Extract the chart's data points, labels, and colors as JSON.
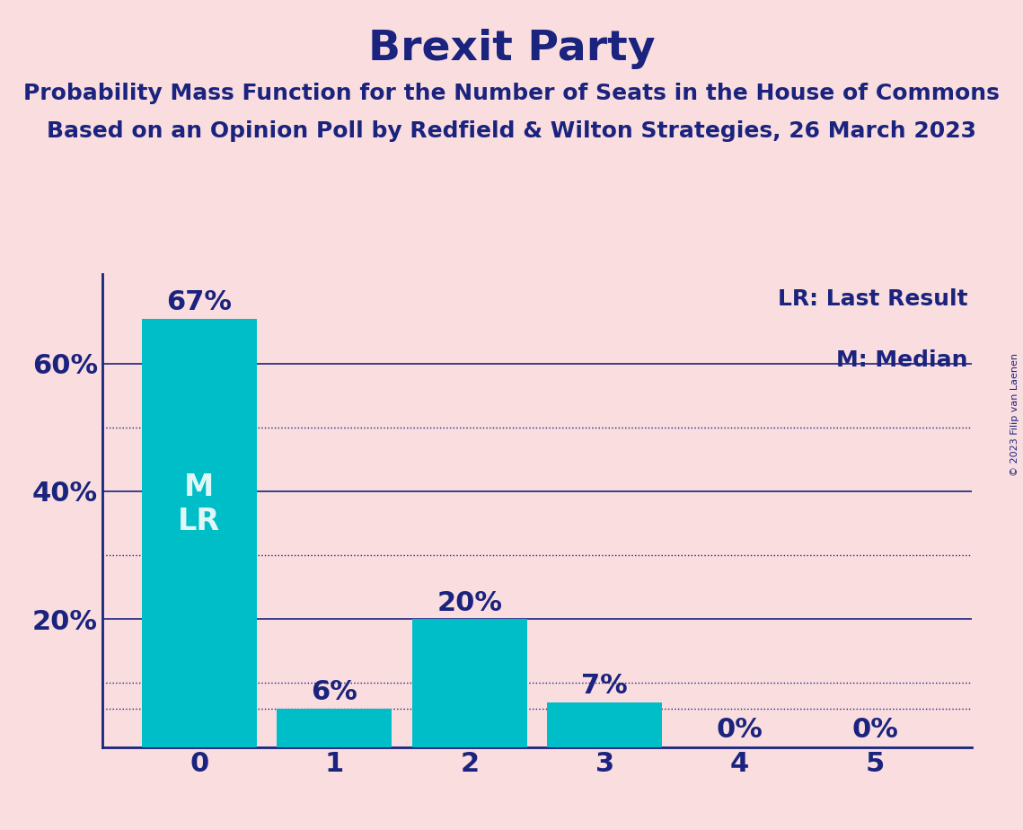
{
  "title": "Brexit Party",
  "subtitle1": "Probability Mass Function for the Number of Seats in the House of Commons",
  "subtitle2": "Based on an Opinion Poll by Redfield & Wilton Strategies, 26 March 2023",
  "copyright": "© 2023 Filip van Laenen",
  "categories": [
    0,
    1,
    2,
    3,
    4,
    5
  ],
  "values": [
    0.67,
    0.06,
    0.2,
    0.07,
    0.0,
    0.0
  ],
  "value_labels": [
    "67%",
    "6%",
    "20%",
    "7%",
    "0%",
    "0%"
  ],
  "bar_color": "#00BEC8",
  "background_color": "#FADDDF",
  "text_color": "#1a237e",
  "title_fontsize": 34,
  "subtitle_fontsize": 18,
  "tick_fontsize": 22,
  "bar_label_fontsize": 22,
  "legend_fontsize": 18,
  "bar_text": [
    "M\nLR",
    "",
    "",
    "",
    "",
    ""
  ],
  "bar_text_color": "#e0f7f7",
  "solid_gridlines": [
    0.2,
    0.4,
    0.6
  ],
  "dotted_gridlines": [
    0.06,
    0.1,
    0.3,
    0.5
  ],
  "ylim": [
    0,
    0.74
  ],
  "yticks": [
    0.0,
    0.2,
    0.4,
    0.6
  ],
  "ytick_labels": [
    "",
    "20%",
    "40%",
    "60%"
  ],
  "legend_text1": "LR: Last Result",
  "legend_text2": "M: Median"
}
